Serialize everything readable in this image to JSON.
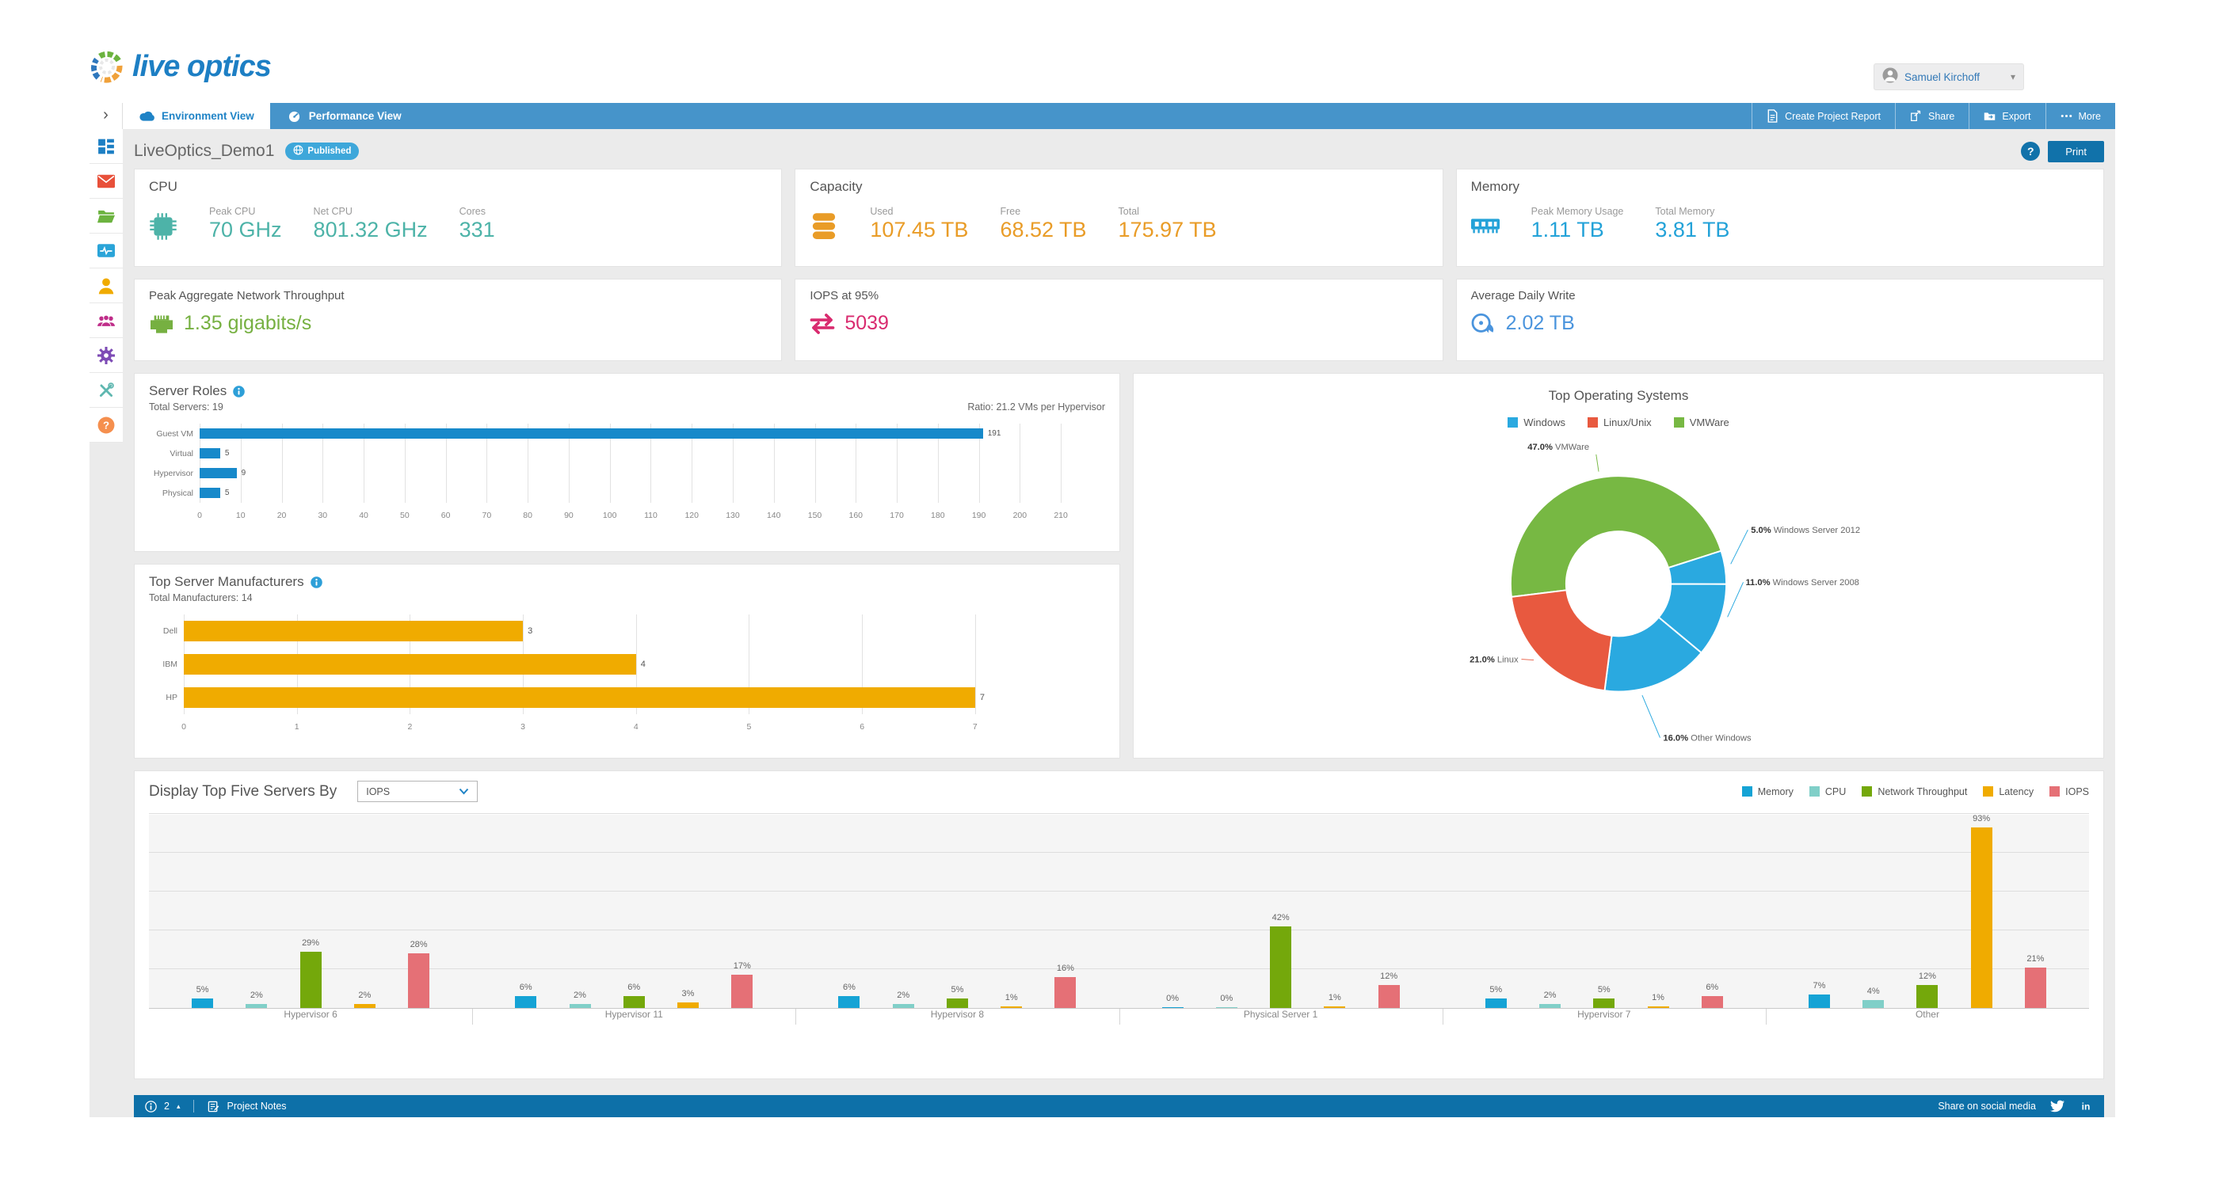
{
  "header": {
    "logo_text": "live optics",
    "user_name": "Samuel Kirchoff",
    "user_menu_caret": "▾"
  },
  "toolbar": {
    "collapse_chevron": "›",
    "tabs": [
      {
        "label": "Environment View",
        "icon": "cloud-icon",
        "active": true
      },
      {
        "label": "Performance View",
        "icon": "gauge-icon",
        "active": false
      }
    ],
    "actions": [
      {
        "label": "Create Project Report",
        "icon": "report-icon"
      },
      {
        "label": "Share",
        "icon": "share-icon"
      },
      {
        "label": "Export",
        "icon": "export-icon"
      },
      {
        "label": "More",
        "icon": "more-dots-icon"
      }
    ]
  },
  "title_bar": {
    "project_name": "LiveOptics_Demo1",
    "status_badge": "Published",
    "badge_icon": "globe-icon",
    "help": "?",
    "print_label": "Print"
  },
  "sidebar": {
    "items": [
      {
        "name": "dashboard",
        "icon": "dashboard-icon",
        "color": "#1d7fc4"
      },
      {
        "name": "mail",
        "icon": "mail-icon",
        "color": "#e8503a"
      },
      {
        "name": "projects",
        "icon": "folder-icon",
        "color": "#6cb33f"
      },
      {
        "name": "monitoring",
        "icon": "activity-icon",
        "color": "#2aa4d8"
      },
      {
        "name": "profile",
        "icon": "user-icon",
        "color": "#f0ab00"
      },
      {
        "name": "team",
        "icon": "users-icon",
        "color": "#bf2d89"
      },
      {
        "name": "settings",
        "icon": "gear-icon",
        "color": "#7d4bb5"
      },
      {
        "name": "admin-tools",
        "icon": "tools-icon",
        "color": "#5fb7b0"
      },
      {
        "name": "help",
        "icon": "question-icon",
        "color": "#f58f4e"
      }
    ]
  },
  "stat_cards": {
    "cpu": {
      "title": "CPU",
      "icon": "cpu-chip-icon",
      "color": "#4db3a8",
      "stats": [
        {
          "label": "Peak CPU",
          "value": "70 GHz"
        },
        {
          "label": "Net CPU",
          "value": "801.32 GHz"
        },
        {
          "label": "Cores",
          "value": "331"
        }
      ]
    },
    "capacity": {
      "title": "Capacity",
      "icon": "disk-stack-icon",
      "color": "#e99c27",
      "stats": [
        {
          "label": "Used",
          "value": "107.45 TB"
        },
        {
          "label": "Free",
          "value": "68.52 TB"
        },
        {
          "label": "Total",
          "value": "175.97 TB"
        }
      ]
    },
    "memory": {
      "title": "Memory",
      "icon": "ram-icon",
      "color": "#23a2d8",
      "stats": [
        {
          "label": "Peak Memory Usage",
          "value": "1.11 TB"
        },
        {
          "label": "Total Memory",
          "value": "3.81 TB"
        }
      ]
    },
    "network": {
      "title": "Peak Aggregate Network Throughput",
      "icon": "ethernet-icon",
      "color": "#76b041",
      "value": "1.35 gigabits/s"
    },
    "iops": {
      "title": "IOPS at 95%",
      "icon": "arrows-swap-icon",
      "color": "#d92b6f",
      "value": "5039"
    },
    "daily_write": {
      "title": "Average Daily Write",
      "icon": "disc-write-icon",
      "color": "#4a94dd",
      "value": "2.02 TB"
    }
  },
  "chart_data": [
    {
      "id": "server_roles",
      "type": "bar",
      "orientation": "horizontal",
      "title": "Server Roles",
      "subtitle_left": "Total Servers: 19",
      "subtitle_right": "Ratio: 21.2 VMs per Hypervisor",
      "categories": [
        "Guest VM",
        "Virtual",
        "Hypervisor",
        "Physical"
      ],
      "values": [
        191,
        5,
        9,
        5
      ],
      "bar_color": "#1789ca",
      "xlim": [
        0,
        215
      ],
      "tick_step": 10,
      "tick_max": 210,
      "grid": true
    },
    {
      "id": "top_manufacturers",
      "type": "bar",
      "orientation": "horizontal",
      "title": "Top Server Manufacturers",
      "subtitle_left": "Total Manufacturers: 14",
      "categories": [
        "Dell",
        "IBM",
        "HP"
      ],
      "values": [
        3,
        4,
        7
      ],
      "bar_color": "#f0ab00",
      "xlim": [
        0,
        7.8
      ],
      "tick_step": 1,
      "tick_max": 7,
      "grid": true
    },
    {
      "id": "top_operating_systems",
      "type": "pie",
      "donut": true,
      "title": "Top Operating Systems",
      "legend": [
        {
          "label": "Windows",
          "color": "#2aa9e0"
        },
        {
          "label": "Linux/Unix",
          "color": "#e8593f"
        },
        {
          "label": "VMWare",
          "color": "#77b843"
        }
      ],
      "slices": [
        {
          "label": "VMWare",
          "pct": 47.0,
          "pct_label": "47.0%",
          "color": "#77b843"
        },
        {
          "label": "Windows Server 2012",
          "pct": 5.0,
          "pct_label": "5.0%",
          "color": "#2aa9e0"
        },
        {
          "label": "Windows Server 2008",
          "pct": 11.0,
          "pct_label": "11.0%",
          "color": "#2aa9e0"
        },
        {
          "label": "Other Windows",
          "pct": 16.0,
          "pct_label": "16.0%",
          "color": "#2aa9e0"
        },
        {
          "label": "Linux",
          "pct": 21.0,
          "pct_label": "21.0%",
          "color": "#e8593f"
        }
      ],
      "start_angle_deg": 263,
      "legend_position": "top"
    },
    {
      "id": "top_five_servers",
      "type": "bar",
      "orientation": "vertical-grouped",
      "control_label": "Display Top Five Servers By",
      "control_value": "IOPS",
      "series": [
        {
          "name": "Memory",
          "color": "#15a3d5"
        },
        {
          "name": "CPU",
          "color": "#80cfc8"
        },
        {
          "name": "Network Throughput",
          "color": "#74a80b"
        },
        {
          "name": "Latency",
          "color": "#f0ab00"
        },
        {
          "name": "IOPS",
          "color": "#e57076"
        }
      ],
      "categories": [
        "Hypervisor 6",
        "Hypervisor 11",
        "Hypervisor 8",
        "Physical Server 1",
        "Hypervisor 7",
        "Other"
      ],
      "values": [
        [
          5,
          2,
          29,
          2,
          28
        ],
        [
          6,
          2,
          6,
          3,
          17
        ],
        [
          6,
          2,
          5,
          1,
          16
        ],
        [
          0,
          0,
          42,
          1,
          12
        ],
        [
          5,
          2,
          5,
          1,
          6
        ],
        [
          7,
          4,
          12,
          93,
          21
        ]
      ],
      "unit": "%",
      "ylim": [
        0,
        100
      ],
      "grid_step": 20,
      "legend_position": "top-right"
    }
  ],
  "footer": {
    "info_count": "2",
    "notes_label": "Project Notes",
    "share_label": "Share on social media"
  }
}
